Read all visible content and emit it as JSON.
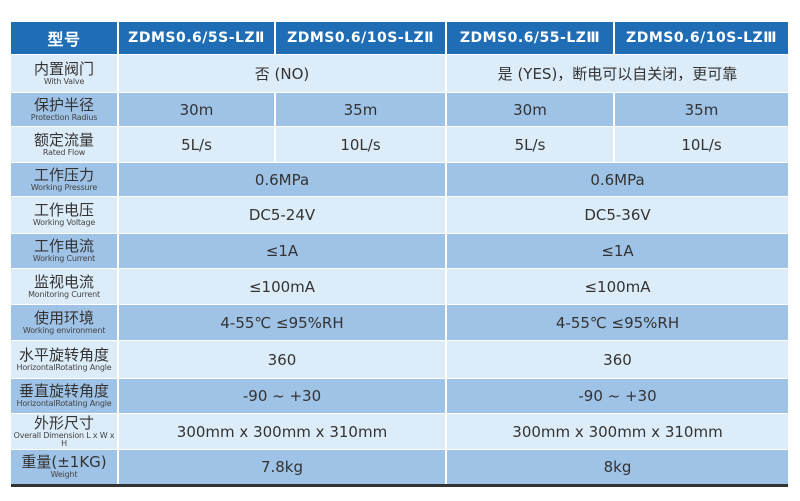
{
  "header": {
    "label": "型号",
    "models": [
      "ZDMS0.6/5S-LZⅡ",
      "ZDMS0.6/10S-LZⅡ",
      "ZDMS0.6/55-LZⅢ",
      "ZDMS0.6/10S-LZⅢ"
    ]
  },
  "rows": [
    {
      "zh": "内置阀门",
      "en": "With Valve",
      "values": [
        "否 (NO)",
        "是 (YES)，断电可以自关闭，更可靠"
      ]
    },
    {
      "zh": "保护半径",
      "en": "Protection Radius",
      "values": [
        "30m",
        "35m",
        "30m",
        "35m"
      ]
    },
    {
      "zh": "额定流量",
      "en": "Rated Flow",
      "values": [
        "5L/s",
        "10L/s",
        "5L/s",
        "10L/s"
      ]
    },
    {
      "zh": "工作压力",
      "en": "Working Pressure",
      "values": [
        "0.6MPa",
        "0.6MPa"
      ]
    },
    {
      "zh": "工作电压",
      "en": "Working Voltage",
      "values": [
        "DC5-24V",
        "DC5-36V"
      ]
    },
    {
      "zh": "工作电流",
      "en": "Working Current",
      "values": [
        "≤1A",
        "≤1A"
      ]
    },
    {
      "zh": "监视电流",
      "en": "Monitoring Current",
      "values": [
        "≤100mA",
        "≤100mA"
      ]
    },
    {
      "zh": "使用环境",
      "en": "Working environment",
      "values": [
        "4-55℃  ≤95%RH",
        "4-55℃  ≤95%RH"
      ]
    },
    {
      "zh": "水平旋转角度",
      "en": "HorizontalRotating Angle",
      "values": [
        "360",
        "360"
      ]
    },
    {
      "zh": "垂直旋转角度",
      "en": "HorizontalRotating Angle",
      "values": [
        "-90 ~ +30",
        "-90 ~ +30"
      ]
    },
    {
      "zh": "外形尺寸",
      "en": "Overall Dimension L x W x H",
      "values": [
        "300mm x 300mm x 310mm",
        "300mm x 300mm x 310mm"
      ]
    },
    {
      "zh": "重量(±1KG)",
      "en": "Weight",
      "values": [
        "7.8kg",
        "8kg"
      ]
    }
  ],
  "colors": {
    "header": "#1f6db5",
    "row_light": "#dcedf9",
    "row_dark": "#9fc3e6"
  }
}
